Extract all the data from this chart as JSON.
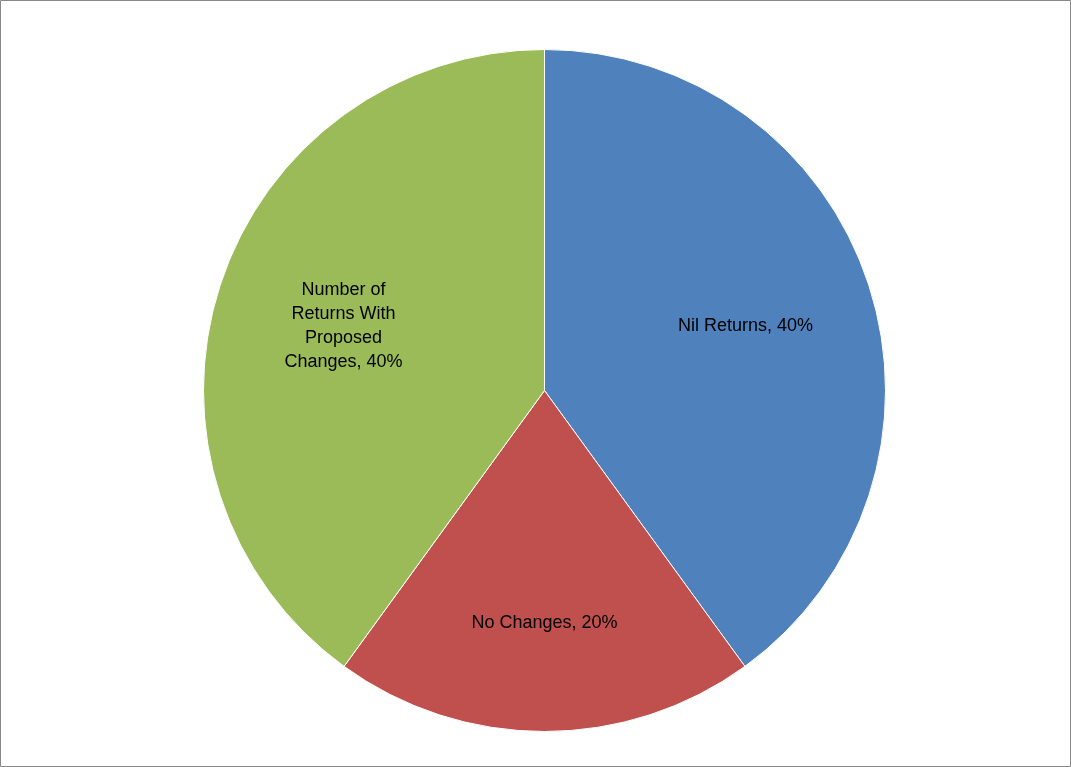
{
  "chart_data": {
    "type": "pie",
    "categories": [
      "Nil Returns",
      "No Changes",
      "Number of Returns With Proposed Changes"
    ],
    "values": [
      40,
      20,
      40
    ],
    "colors": [
      "#4f81bd",
      "#c0504d",
      "#9bbb59"
    ],
    "value_labels": [
      "40%",
      "20%",
      "40%"
    ]
  }
}
